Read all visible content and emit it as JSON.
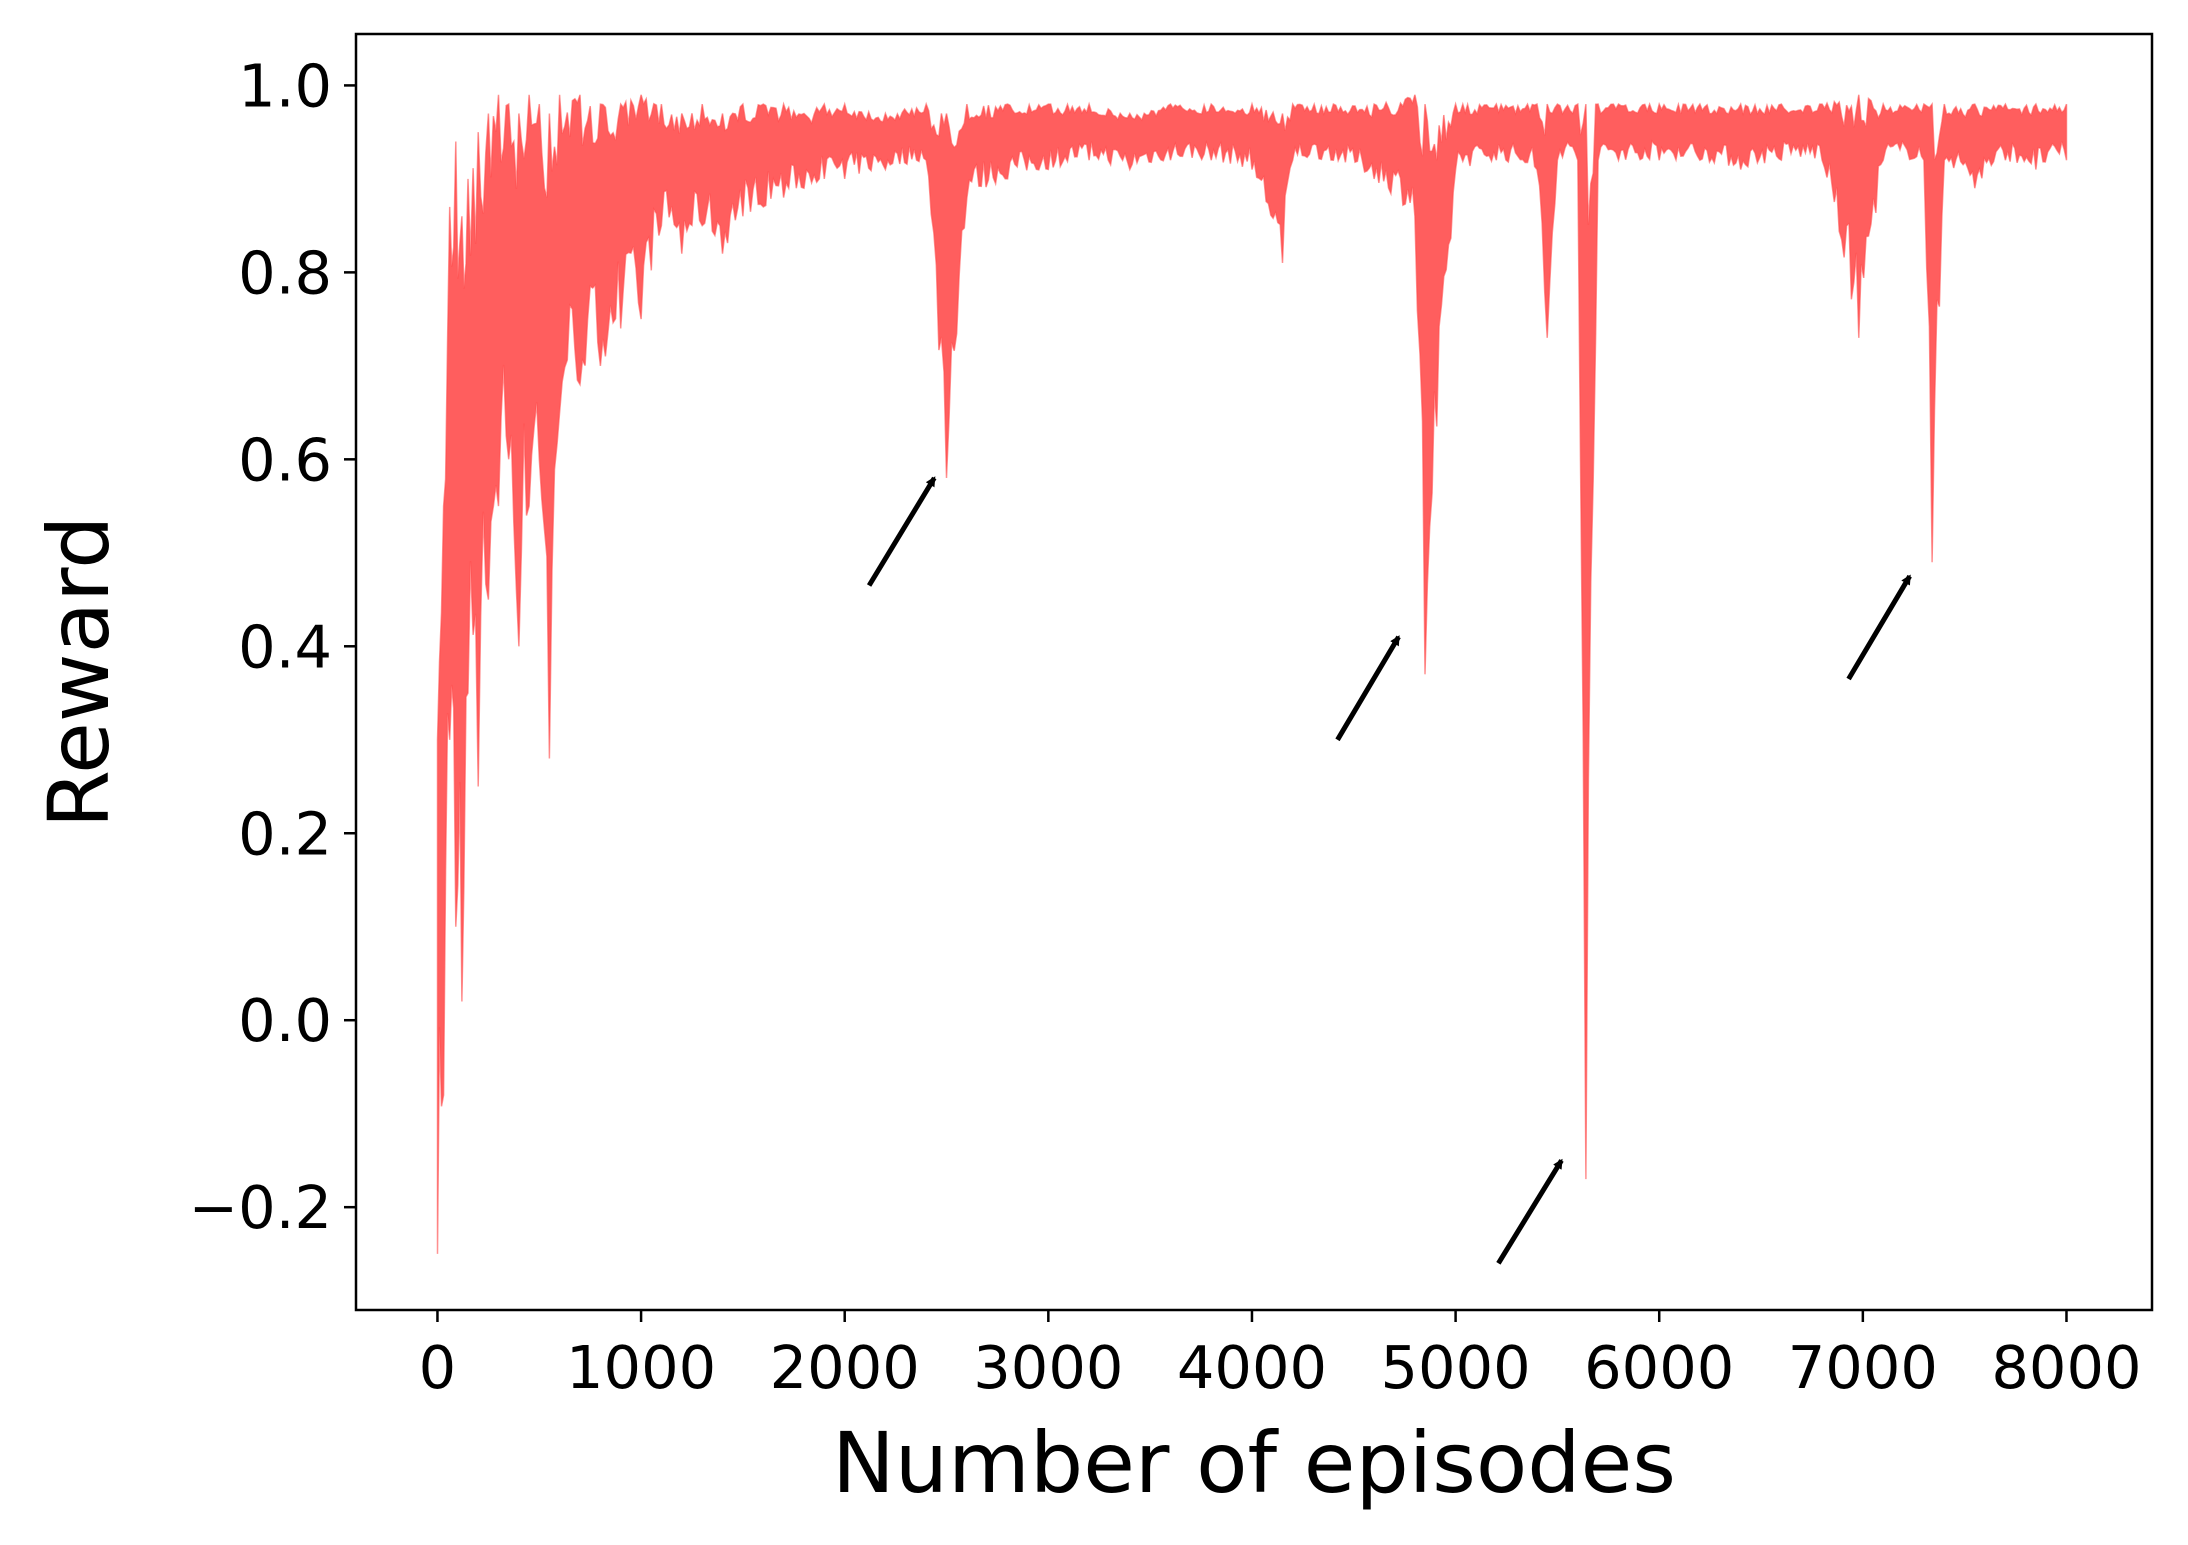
{
  "chart_data": {
    "type": "area",
    "xlabel": "Number of episodes",
    "ylabel": "Reward",
    "xlim": [
      -400,
      8420
    ],
    "ylim": [
      -0.31,
      1.055
    ],
    "xticks": [
      0,
      1000,
      2000,
      3000,
      4000,
      5000,
      6000,
      7000,
      8000
    ],
    "xtick_labels": [
      "0",
      "1000",
      "2000",
      "3000",
      "4000",
      "5000",
      "6000",
      "7000",
      "8000"
    ],
    "yticks": [
      -0.2,
      0.0,
      0.2,
      0.4,
      0.6,
      0.8,
      1.0
    ],
    "ytick_labels": [
      "−0.2",
      "0.0",
      "0.2",
      "0.4",
      "0.6",
      "0.8",
      "1.0"
    ],
    "grid": false,
    "legend": false,
    "color": "#ff4d4d",
    "series": [
      {
        "x": [
          0,
          30,
          60,
          90,
          120,
          150,
          200,
          250,
          300,
          350,
          400,
          450,
          500,
          550,
          600,
          700,
          800,
          900,
          1000,
          1100,
          1200,
          1300,
          1400,
          1500,
          1600,
          1700,
          1800,
          1900,
          2000,
          2200,
          2400,
          2500,
          2600,
          2800,
          3000,
          3200,
          3400,
          3600,
          3800,
          4000,
          4150,
          4200,
          4400,
          4600,
          4800,
          4850,
          5000,
          5200,
          5400,
          5450,
          5500,
          5600,
          5640,
          5700,
          5800,
          6000,
          6200,
          6400,
          6600,
          6800,
          6980,
          7100,
          7300,
          7340,
          7400,
          7550,
          7700,
          7850,
          8000
        ],
        "upper": [
          0.3,
          0.55,
          0.87,
          0.94,
          0.86,
          0.9,
          0.95,
          0.97,
          0.99,
          0.98,
          0.97,
          0.99,
          0.98,
          0.97,
          0.99,
          0.99,
          0.98,
          0.98,
          0.99,
          0.98,
          0.97,
          0.98,
          0.97,
          0.98,
          0.98,
          0.98,
          0.97,
          0.98,
          0.98,
          0.97,
          0.98,
          0.97,
          0.98,
          0.98,
          0.98,
          0.98,
          0.97,
          0.98,
          0.98,
          0.98,
          0.97,
          0.98,
          0.98,
          0.98,
          0.99,
          0.98,
          0.98,
          0.98,
          0.98,
          0.98,
          0.98,
          0.98,
          0.98,
          0.98,
          0.98,
          0.98,
          0.98,
          0.98,
          0.98,
          0.98,
          0.99,
          0.98,
          0.98,
          0.98,
          0.98,
          0.98,
          0.98,
          0.98,
          0.98
        ],
        "lower": [
          -0.25,
          -0.08,
          0.3,
          0.1,
          0.02,
          0.35,
          0.25,
          0.45,
          0.55,
          0.6,
          0.4,
          0.55,
          0.6,
          0.28,
          0.65,
          0.68,
          0.7,
          0.74,
          0.75,
          0.85,
          0.82,
          0.85,
          0.82,
          0.86,
          0.87,
          0.88,
          0.89,
          0.9,
          0.9,
          0.91,
          0.92,
          0.58,
          0.88,
          0.9,
          0.91,
          0.92,
          0.91,
          0.92,
          0.92,
          0.91,
          0.81,
          0.92,
          0.92,
          0.9,
          0.86,
          0.37,
          0.91,
          0.92,
          0.91,
          0.73,
          0.92,
          0.92,
          -0.17,
          0.92,
          0.92,
          0.92,
          0.92,
          0.91,
          0.92,
          0.92,
          0.73,
          0.92,
          0.92,
          0.49,
          0.92,
          0.89,
          0.92,
          0.91,
          0.92
        ]
      }
    ],
    "annotations": [
      {
        "type": "arrow",
        "from": [
          2120,
          0.465
        ],
        "to": [
          2440,
          0.58
        ]
      },
      {
        "type": "arrow",
        "from": [
          4420,
          0.3
        ],
        "to": [
          4720,
          0.41
        ]
      },
      {
        "type": "arrow",
        "from": [
          5210,
          -0.26
        ],
        "to": [
          5520,
          -0.15
        ]
      },
      {
        "type": "arrow",
        "from": [
          6930,
          0.365
        ],
        "to": [
          7230,
          0.475
        ]
      }
    ]
  }
}
